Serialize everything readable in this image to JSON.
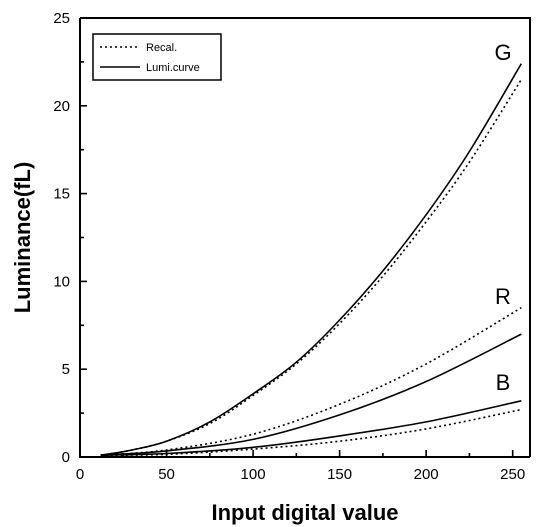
{
  "chart_data": {
    "type": "line",
    "xlabel": "Input digital value",
    "ylabel": "Luminance(fL)",
    "xlim": [
      0,
      260
    ],
    "ylim": [
      0,
      25
    ],
    "x_ticks": [
      0,
      50,
      100,
      150,
      200,
      250
    ],
    "y_ticks": [
      0,
      5,
      10,
      15,
      20,
      25
    ],
    "grid": false,
    "legend_position": "top-left",
    "legend": [
      {
        "label": "Recal.",
        "style": "dotted"
      },
      {
        "label": "Lumi.curve",
        "style": "solid"
      }
    ],
    "series": [
      {
        "name": "G",
        "style": "solid",
        "x": [
          12,
          30,
          50,
          75,
          100,
          125,
          150,
          175,
          200,
          225,
          255
        ],
        "y": [
          0.1,
          0.4,
          0.9,
          2.0,
          3.6,
          5.4,
          7.8,
          10.6,
          13.8,
          17.4,
          22.4
        ]
      },
      {
        "name": "G",
        "style": "dotted",
        "x": [
          12,
          30,
          50,
          75,
          100,
          125,
          150,
          175,
          200,
          225,
          255
        ],
        "y": [
          0.1,
          0.4,
          0.9,
          1.9,
          3.5,
          5.3,
          7.6,
          10.3,
          13.4,
          16.8,
          21.5
        ]
      },
      {
        "name": "R",
        "style": "solid",
        "x": [
          12,
          50,
          100,
          150,
          200,
          255
        ],
        "y": [
          0.1,
          0.35,
          1.0,
          2.4,
          4.3,
          7.0
        ]
      },
      {
        "name": "R",
        "style": "dotted",
        "x": [
          12,
          50,
          100,
          150,
          200,
          255
        ],
        "y": [
          0.1,
          0.4,
          1.3,
          3.0,
          5.3,
          8.5
        ]
      },
      {
        "name": "B",
        "style": "solid",
        "x": [
          12,
          50,
          100,
          150,
          200,
          255
        ],
        "y": [
          0.1,
          0.2,
          0.55,
          1.2,
          2.0,
          3.2
        ]
      },
      {
        "name": "B",
        "style": "dotted",
        "x": [
          12,
          50,
          100,
          150,
          200,
          255
        ],
        "y": [
          0.1,
          0.15,
          0.45,
          0.9,
          1.6,
          2.7
        ]
      }
    ]
  }
}
